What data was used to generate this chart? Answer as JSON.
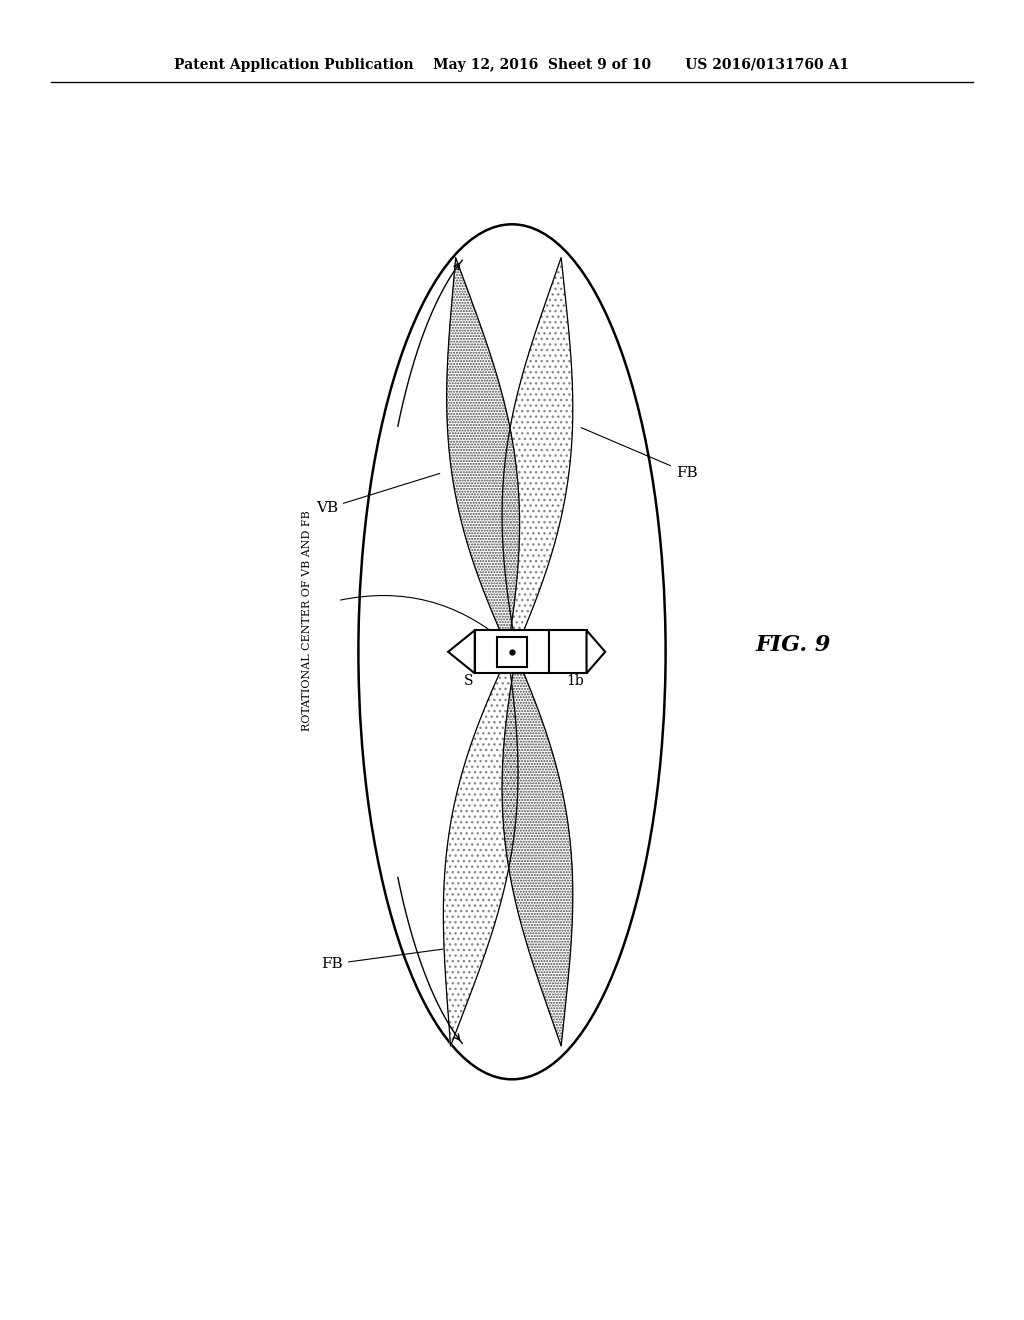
{
  "title_line": "Patent Application Publication    May 12, 2016  Sheet 9 of 10       US 2016/0131760 A1",
  "fig_label": "FIG. 9",
  "label_VB": "VB",
  "label_FB_top": "FB",
  "label_FB_bottom": "FB",
  "label_S": "S",
  "label_1b": "1b",
  "label_rot_center": "ROTATIONAL CENTER OF VB AND FB",
  "bg_color": "#ffffff",
  "line_color": "#000000"
}
